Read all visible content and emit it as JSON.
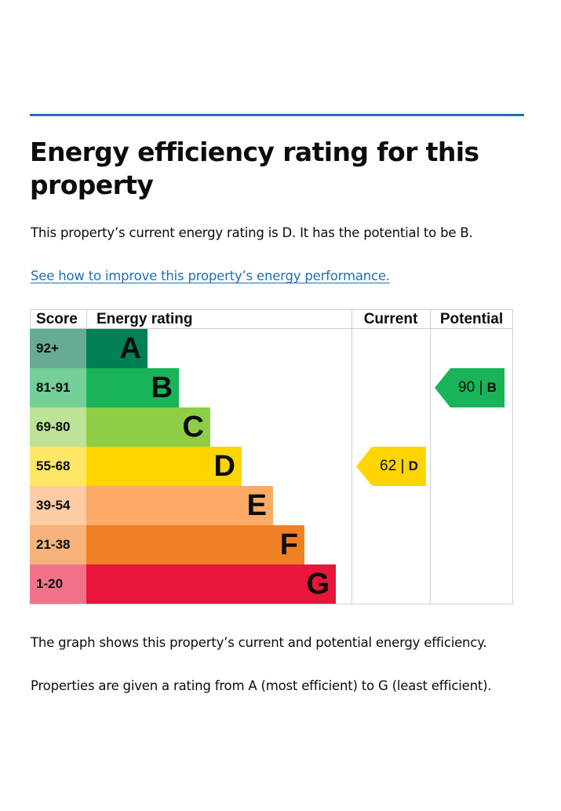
{
  "page": {
    "title": "Energy efficiency rating for this property",
    "summary": "This property’s current energy rating is D. It has the potential to be B.",
    "improve_link": "See how to improve this property’s energy performance.",
    "footer_1": "The graph shows this property’s current and potential energy efficiency.",
    "footer_2": "Properties are given a rating from A (most efficient) to G (least efficient)."
  },
  "chart_data": {
    "type": "bar",
    "headers": {
      "score": "Score",
      "rating": "Energy rating",
      "current": "Current",
      "potential": "Potential"
    },
    "bands": [
      {
        "score": "92+",
        "letter": "A",
        "color": "#008054",
        "score_bg": "#67ab93"
      },
      {
        "score": "81-91",
        "letter": "B",
        "color": "#19b459",
        "score_bg": "#75cf98"
      },
      {
        "score": "69-80",
        "letter": "C",
        "color": "#8dce46",
        "score_bg": "#bce396"
      },
      {
        "score": "55-68",
        "letter": "D",
        "color": "#ffd500",
        "score_bg": "#ffe766"
      },
      {
        "score": "39-54",
        "letter": "E",
        "color": "#fcaa65",
        "score_bg": "#fdcca3"
      },
      {
        "score": "21-38",
        "letter": "F",
        "color": "#ef8023",
        "score_bg": "#f5b27b"
      },
      {
        "score": "1-20",
        "letter": "G",
        "color": "#e9153b",
        "score_bg": "#f27389"
      }
    ],
    "current": {
      "value": 62,
      "band": "D",
      "label": "62 |",
      "color": "#ffd500"
    },
    "potential": {
      "value": 90,
      "band": "B",
      "label": "90 |",
      "color": "#19b459"
    }
  }
}
